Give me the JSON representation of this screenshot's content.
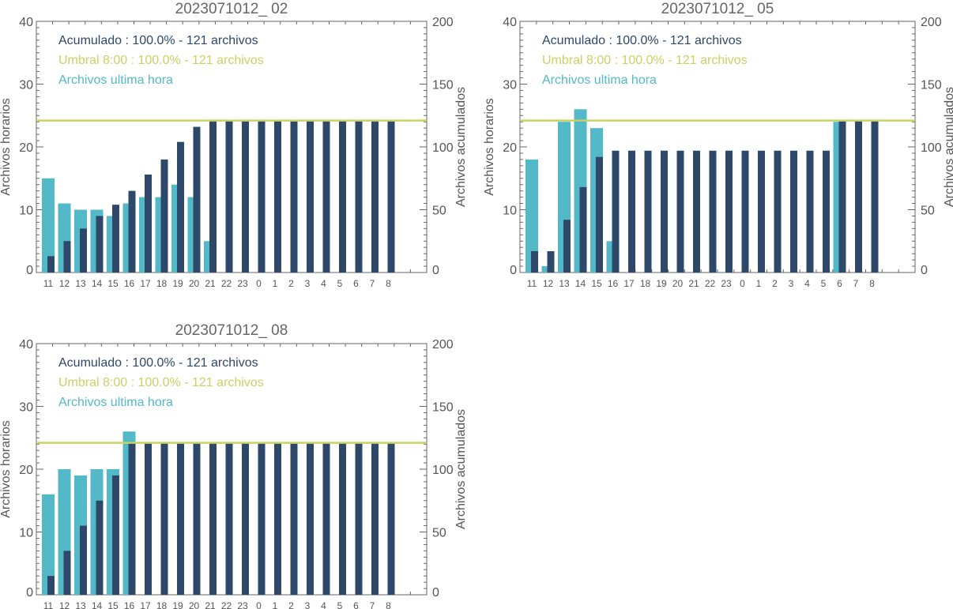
{
  "colors": {
    "hourly": "#53b8c8",
    "accumulated": "#2d4868",
    "threshold": "#c8d264",
    "axis": "#666666",
    "text": "#555555"
  },
  "chart_data": [
    {
      "type": "bar",
      "title": "2023071012_ 02",
      "ylabel": "Archivos horarios",
      "y2label": "Archivos acumulados",
      "ylim": [
        0,
        40
      ],
      "y2lim": [
        0,
        200
      ],
      "yticks": [
        "0",
        "10",
        "20",
        "30",
        "40"
      ],
      "y2ticks": [
        "0",
        "50",
        "100",
        "150",
        "200"
      ],
      "categories": [
        "11",
        "12",
        "13",
        "14",
        "15",
        "16",
        "17",
        "18",
        "19",
        "20",
        "21",
        "22",
        "23",
        "0",
        "1",
        "2",
        "3",
        "4",
        "5",
        "6",
        "7",
        "8"
      ],
      "legend": [
        {
          "text": "Acumulado : 100.0% - 121 archivos",
          "series": "accumulated"
        },
        {
          "text": "Umbral 8:00 : 100.0% - 121 archivos",
          "series": "threshold"
        },
        {
          "text": "Archivos ultima hora",
          "series": "hourly"
        }
      ],
      "threshold": 121,
      "series": [
        {
          "name": "Archivos ultima hora",
          "axis": "left",
          "values": [
            15,
            11,
            10,
            10,
            9,
            11,
            12,
            12,
            14,
            12,
            5,
            0,
            0,
            0,
            0,
            0,
            0,
            0,
            0,
            0,
            0,
            0
          ]
        },
        {
          "name": "Acumulado",
          "axis": "right",
          "values": [
            13,
            25,
            35,
            45,
            54,
            65,
            78,
            90,
            104,
            116,
            121,
            121,
            121,
            121,
            121,
            121,
            121,
            121,
            121,
            121,
            121,
            121
          ]
        }
      ]
    },
    {
      "type": "bar",
      "title": "2023071012_ 05",
      "ylabel": "Archivos horarios",
      "y2label": "Archivos acumulados",
      "ylim": [
        0,
        40
      ],
      "y2lim": [
        0,
        200
      ],
      "yticks": [
        "0",
        "10",
        "20",
        "30",
        "40"
      ],
      "y2ticks": [
        "0",
        "50",
        "100",
        "150",
        "200"
      ],
      "categories": [
        "11",
        "12",
        "13",
        "14",
        "15",
        "16",
        "17",
        "18",
        "19",
        "20",
        "21",
        "22",
        "23",
        "0",
        "1",
        "2",
        "3",
        "4",
        "5",
        "6",
        "7",
        "8"
      ],
      "legend": [
        {
          "text": "Acumulado : 100.0% - 121 archivos",
          "series": "accumulated"
        },
        {
          "text": "Umbral 8:00 : 100.0% - 121 archivos",
          "series": "threshold"
        },
        {
          "text": "Archivos ultima hora",
          "series": "hourly"
        }
      ],
      "threshold": 121,
      "series": [
        {
          "name": "Archivos ultima hora",
          "axis": "left",
          "values": [
            18,
            1,
            24,
            26,
            23,
            5,
            0,
            0,
            0,
            0,
            0,
            0,
            0,
            0,
            0,
            0,
            0,
            0,
            0,
            24,
            0,
            0
          ]
        },
        {
          "name": "Acumulado",
          "axis": "right",
          "values": [
            17,
            17,
            42,
            68,
            92,
            97,
            97,
            97,
            97,
            97,
            97,
            97,
            97,
            97,
            97,
            97,
            97,
            97,
            97,
            121,
            121,
            121
          ]
        }
      ]
    },
    {
      "type": "bar",
      "title": "2023071012_ 08",
      "ylabel": "Archivos horarios",
      "y2label": "Archivos acumulados",
      "ylim": [
        0,
        40
      ],
      "y2lim": [
        0,
        200
      ],
      "yticks": [
        "0",
        "10",
        "20",
        "30",
        "40"
      ],
      "y2ticks": [
        "0",
        "50",
        "100",
        "150",
        "200"
      ],
      "categories": [
        "11",
        "12",
        "13",
        "14",
        "15",
        "16",
        "17",
        "18",
        "19",
        "20",
        "21",
        "22",
        "23",
        "0",
        "1",
        "2",
        "3",
        "4",
        "5",
        "6",
        "7",
        "8"
      ],
      "legend": [
        {
          "text": "Acumulado : 100.0% - 121 archivos",
          "series": "accumulated"
        },
        {
          "text": "Umbral 8:00 : 100.0% - 121 archivos",
          "series": "threshold"
        },
        {
          "text": "Archivos ultima hora",
          "series": "hourly"
        }
      ],
      "threshold": 121,
      "series": [
        {
          "name": "Archivos ultima hora",
          "axis": "left",
          "values": [
            16,
            20,
            19,
            20,
            20,
            26,
            0,
            0,
            0,
            0,
            0,
            0,
            0,
            0,
            0,
            0,
            0,
            0,
            0,
            0,
            0,
            0
          ]
        },
        {
          "name": "Acumulado",
          "axis": "right",
          "values": [
            15,
            35,
            55,
            75,
            95,
            121,
            121,
            121,
            121,
            121,
            121,
            121,
            121,
            121,
            121,
            121,
            121,
            121,
            121,
            121,
            121,
            121
          ]
        }
      ]
    }
  ]
}
